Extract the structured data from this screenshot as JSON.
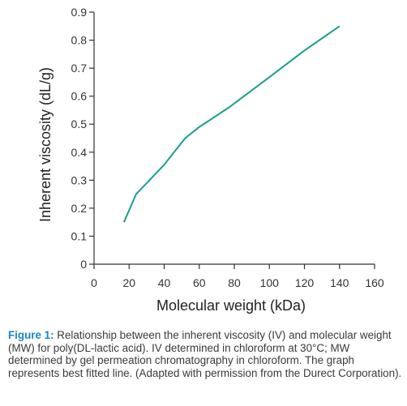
{
  "chart_data": {
    "type": "line",
    "xlabel": "Molecular weight (kDa)",
    "ylabel": "Inherent viscosity (dL/g)",
    "xlim": [
      0,
      160
    ],
    "ylim": [
      0,
      0.9
    ],
    "x_ticks": [
      "0",
      "20",
      "40",
      "60",
      "80",
      "100",
      "120",
      "140",
      "160"
    ],
    "y_ticks": [
      "0",
      "0.1",
      "0.2",
      "0.3",
      "0.4",
      "0.5",
      "0.6",
      "0.7",
      "0.8",
      "0.9"
    ],
    "grid": false,
    "series": [
      {
        "color": "#1a9e8a",
        "x": [
          17,
          24,
          40,
          52,
          60,
          77,
          100,
          120,
          140
        ],
        "y": [
          0.15,
          0.25,
          0.355,
          0.45,
          0.49,
          0.56,
          0.668,
          0.763,
          0.85
        ]
      }
    ]
  },
  "caption": {
    "label": "Figure 1:",
    "text": " Relationship between the inherent viscosity (IV) and molecular weight (MW) for poly(DL-lactic acid). IV determined in chloroform at 30°C; MW determined by gel permeation chromatography in chloroform. The graph represents best fitted line. (Adapted with permission from the Durect Corporation)."
  },
  "colors": {
    "series": "#1a9e8a",
    "axis": "#333333",
    "caption_label": "#1a86c7"
  }
}
